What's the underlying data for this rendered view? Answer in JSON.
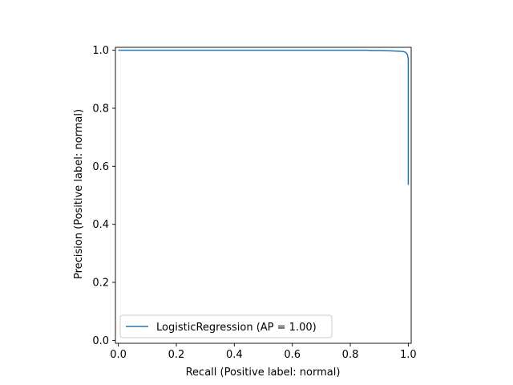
{
  "chart_data": {
    "type": "line",
    "title": "",
    "xlabel": "Recall (Positive label: normal)",
    "ylabel": "Precision (Positive label: normal)",
    "xlim": [
      -0.01,
      1.01
    ],
    "ylim": [
      -0.01,
      1.01
    ],
    "x_ticks": [
      0.0,
      0.2,
      0.4,
      0.6,
      0.8,
      1.0
    ],
    "y_ticks": [
      0.0,
      0.2,
      0.4,
      0.6,
      0.8,
      1.0
    ],
    "x_tick_labels": [
      "0.0",
      "0.2",
      "0.4",
      "0.6",
      "0.8",
      "1.0"
    ],
    "y_tick_labels": [
      "0.0",
      "0.2",
      "0.4",
      "0.6",
      "0.8",
      "1.0"
    ],
    "grid": false,
    "legend_position": "lower-left",
    "series": [
      {
        "name": "LogisticRegression (AP = 1.00)",
        "color": "#1f77b4",
        "x": [
          0.0,
          0.001,
          0.1,
          0.3,
          0.5,
          0.7,
          0.86,
          0.87,
          0.9,
          0.94,
          0.96,
          0.975,
          0.985,
          0.99,
          0.993,
          0.995,
          0.997,
          0.998,
          0.999,
          1.0,
          1.0,
          1.0,
          1.0
        ],
        "y": [
          1.0,
          1.0,
          1.0,
          1.0,
          1.0,
          1.0,
          1.0,
          0.999,
          0.999,
          0.998,
          0.997,
          0.996,
          0.995,
          0.993,
          0.99,
          0.988,
          0.985,
          0.98,
          0.975,
          0.97,
          0.9,
          0.7,
          0.536
        ]
      }
    ]
  }
}
